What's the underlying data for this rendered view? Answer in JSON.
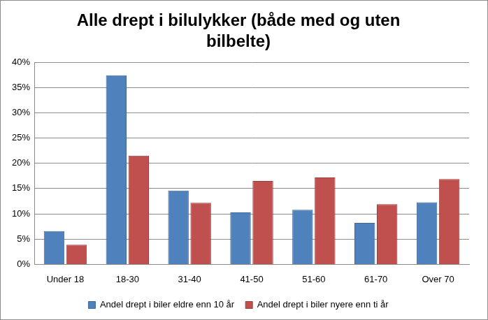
{
  "chart_data": {
    "type": "bar",
    "title": "Alle drept i bilulykker (både med og uten bilbelte)",
    "categories": [
      "Under 18",
      "18-30",
      "31-40",
      "41-50",
      "51-60",
      "61-70",
      "Over 70"
    ],
    "series": [
      {
        "name": "Andel drept i biler eldre enn 10 år",
        "color": "#4f81bd",
        "values": [
          6.6,
          37.4,
          14.6,
          10.3,
          10.8,
          8.2,
          12.3
        ]
      },
      {
        "name": "Andel drept i biler nyere enn ti år",
        "color": "#c0504d",
        "values": [
          3.9,
          21.5,
          12.2,
          16.5,
          17.2,
          11.9,
          16.9
        ]
      }
    ],
    "ylim": [
      0,
      40
    ],
    "yticks": [
      {
        "value": 0,
        "label": "0%"
      },
      {
        "value": 5,
        "label": "5%"
      },
      {
        "value": 10,
        "label": "10%"
      },
      {
        "value": 15,
        "label": "15%"
      },
      {
        "value": 20,
        "label": "20%"
      },
      {
        "value": 25,
        "label": "25%"
      },
      {
        "value": 30,
        "label": "30%"
      },
      {
        "value": 35,
        "label": "35%"
      },
      {
        "value": 40,
        "label": "40%"
      }
    ],
    "grid": true,
    "legend": "bottom"
  }
}
